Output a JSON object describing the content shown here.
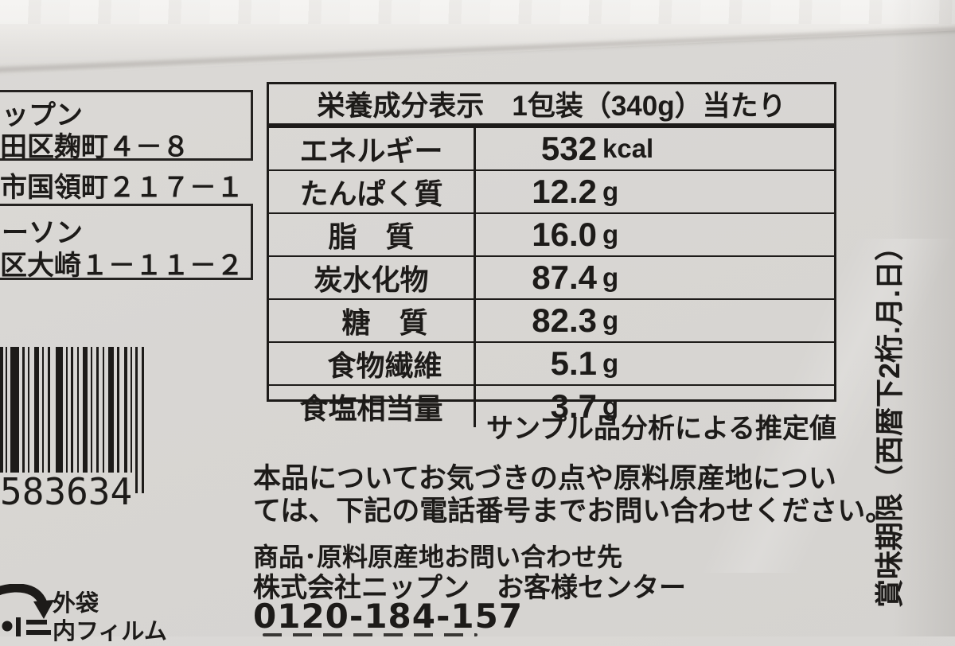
{
  "colors": {
    "ink": "#1d1b19",
    "package_gray": "#d8d6d3"
  },
  "left_label": {
    "lines": [
      "ップン",
      "田区麹町４－８",
      "市国領町２１７－１",
      "ーソン",
      "区大崎１－１１－２"
    ]
  },
  "nutrition": {
    "title": "栄養成分表示　1包装（340g）当たり",
    "rows": [
      {
        "label": "エネルギー",
        "value": "532",
        "unit": "kcal"
      },
      {
        "label": "たんぱく質",
        "value": "12.2",
        "unit": "g"
      },
      {
        "label": "脂　質",
        "value": "16.0",
        "unit": "g"
      },
      {
        "label": "炭水化物",
        "value": "87.4",
        "unit": "g"
      },
      {
        "label": "糖　質",
        "value": "82.3",
        "unit": "g",
        "indent": true
      },
      {
        "label": "食物繊維",
        "value": "5.1",
        "unit": "g",
        "indent": true
      },
      {
        "label": "食塩相当量",
        "value": "3.7",
        "unit": "g"
      }
    ],
    "footnote": "サンプル品分析による推定値"
  },
  "notice": {
    "line1": "本品についてお気づきの点や原料原産地につい",
    "line2": "ては、下記の電話番号までお問い合わせください。"
  },
  "contact": {
    "heading": "商品･原料原産地お問い合わせ先",
    "company": "株式会社ニップン　お客様センター",
    "phone": "0120-184-157"
  },
  "barcode": {
    "digits": "583634"
  },
  "recycle": {
    "outer": "外袋",
    "inner": "内フィルム"
  },
  "expiry": "賞味期限（西暦下2桁.月.日）"
}
